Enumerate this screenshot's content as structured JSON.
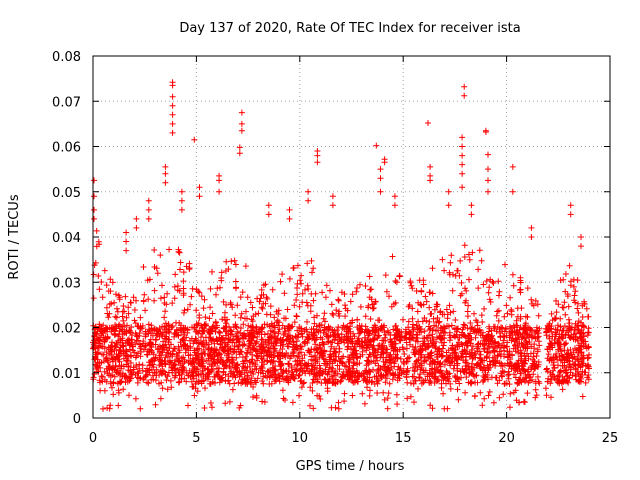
{
  "chart_data": {
    "type": "scatter",
    "title": "Day 137 of 2020, Rate Of TEC Index for receiver ista",
    "xlabel": "GPS time / hours",
    "ylabel": "ROTI / TECUs",
    "xlim": [
      0,
      25
    ],
    "ylim": [
      0,
      0.08
    ],
    "xticks": [
      0,
      5,
      10,
      15,
      20,
      25
    ],
    "xtick_labels": [
      "0",
      "5",
      "10",
      "15",
      "20",
      "25"
    ],
    "yticks": [
      0,
      0.01,
      0.02,
      0.03,
      0.04,
      0.05,
      0.06,
      0.07,
      0.08
    ],
    "ytick_labels": [
      "0",
      "0.01",
      "0.02",
      "0.03",
      "0.04",
      "0.05",
      "0.06",
      "0.07",
      "0.08"
    ],
    "grid": true,
    "marker": "plus",
    "marker_color": "#ff0000",
    "series": [
      {
        "name": "ROTI",
        "dense_band": {
          "x_start": 0.0,
          "x_end": 24.0,
          "gaps_x": [
            [
              21.6,
              21.9
            ]
          ]
        },
        "envelope": {
          "x": [
            0,
            0.5,
            1,
            2,
            3,
            3.5,
            4,
            5,
            6,
            7,
            8,
            9,
            10,
            10.5,
            11,
            12,
            13,
            14,
            14.5,
            15,
            16,
            17,
            18,
            19,
            20,
            21,
            21.5,
            22,
            22.5,
            23,
            23.5,
            24
          ],
          "upper": [
            0.045,
            0.035,
            0.03,
            0.032,
            0.038,
            0.036,
            0.04,
            0.032,
            0.034,
            0.036,
            0.03,
            0.032,
            0.034,
            0.038,
            0.03,
            0.028,
            0.03,
            0.034,
            0.036,
            0.03,
            0.032,
            0.036,
            0.04,
            0.038,
            0.034,
            0.03,
            0.026,
            0.022,
            0.03,
            0.034,
            0.03,
            0.026
          ],
          "lower": [
            0.004,
            0.006,
            0.006,
            0.006,
            0.006,
            0.005,
            0.003,
            0.005,
            0.006,
            0.006,
            0.006,
            0.006,
            0.006,
            0.006,
            0.006,
            0.006,
            0.006,
            0.006,
            0.006,
            0.005,
            0.006,
            0.006,
            0.004,
            0.005,
            0.006,
            0.006,
            0.007,
            0.006,
            0.004,
            0.005,
            0.006,
            0.006
          ]
        },
        "spikes": [
          {
            "x": 0.05,
            "values": [
              0.0525,
              0.049,
              0.046,
              0.044
            ]
          },
          {
            "x": 1.6,
            "values": [
              0.041,
              0.039,
              0.037
            ]
          },
          {
            "x": 2.1,
            "values": [
              0.044,
              0.042
            ]
          },
          {
            "x": 2.7,
            "values": [
              0.048,
              0.046,
              0.044
            ]
          },
          {
            "x": 3.5,
            "values": [
              0.0555,
              0.054,
              0.052
            ]
          },
          {
            "x": 3.85,
            "values": [
              0.0742,
              0.0735,
              0.071,
              0.069,
              0.067,
              0.065,
              0.063
            ]
          },
          {
            "x": 4.3,
            "values": [
              0.05,
              0.048,
              0.046
            ]
          },
          {
            "x": 4.9,
            "values": [
              0.0615
            ]
          },
          {
            "x": 5.15,
            "values": [
              0.051,
              0.049
            ]
          },
          {
            "x": 6.1,
            "values": [
              0.0535,
              0.0525,
              0.05
            ]
          },
          {
            "x": 7.2,
            "values": [
              0.0675,
              0.065,
              0.0635
            ]
          },
          {
            "x": 7.1,
            "values": [
              0.0598,
              0.0585
            ]
          },
          {
            "x": 8.5,
            "values": [
              0.047,
              0.045
            ]
          },
          {
            "x": 9.5,
            "values": [
              0.046,
              0.044
            ]
          },
          {
            "x": 10.85,
            "values": [
              0.059,
              0.058,
              0.0565
            ]
          },
          {
            "x": 10.4,
            "values": [
              0.05,
              0.048
            ]
          },
          {
            "x": 11.6,
            "values": [
              0.049,
              0.047
            ]
          },
          {
            "x": 13.7,
            "values": [
              0.0602
            ]
          },
          {
            "x": 13.9,
            "values": [
              0.055,
              0.053,
              0.05
            ]
          },
          {
            "x": 14.1,
            "values": [
              0.0572,
              0.0565
            ]
          },
          {
            "x": 14.6,
            "values": [
              0.049,
              0.047
            ]
          },
          {
            "x": 16.2,
            "values": [
              0.0652
            ]
          },
          {
            "x": 16.3,
            "values": [
              0.0555,
              0.0535,
              0.0525
            ]
          },
          {
            "x": 17.2,
            "values": [
              0.05,
              0.047
            ]
          },
          {
            "x": 17.95,
            "values": [
              0.0732,
              0.0712
            ]
          },
          {
            "x": 17.85,
            "values": [
              0.062,
              0.06,
              0.058,
              0.056,
              0.054,
              0.051
            ]
          },
          {
            "x": 18.3,
            "values": [
              0.047,
              0.045
            ]
          },
          {
            "x": 19.0,
            "values": [
              0.0635,
              0.0632
            ]
          },
          {
            "x": 19.1,
            "values": [
              0.0582,
              0.055,
              0.0525,
              0.05
            ]
          },
          {
            "x": 20.3,
            "values": [
              0.0555,
              0.05
            ]
          },
          {
            "x": 21.2,
            "values": [
              0.042,
              0.04
            ]
          },
          {
            "x": 23.1,
            "values": [
              0.047,
              0.045
            ]
          },
          {
            "x": 23.6,
            "values": [
              0.04,
              0.038
            ]
          }
        ]
      }
    ]
  }
}
